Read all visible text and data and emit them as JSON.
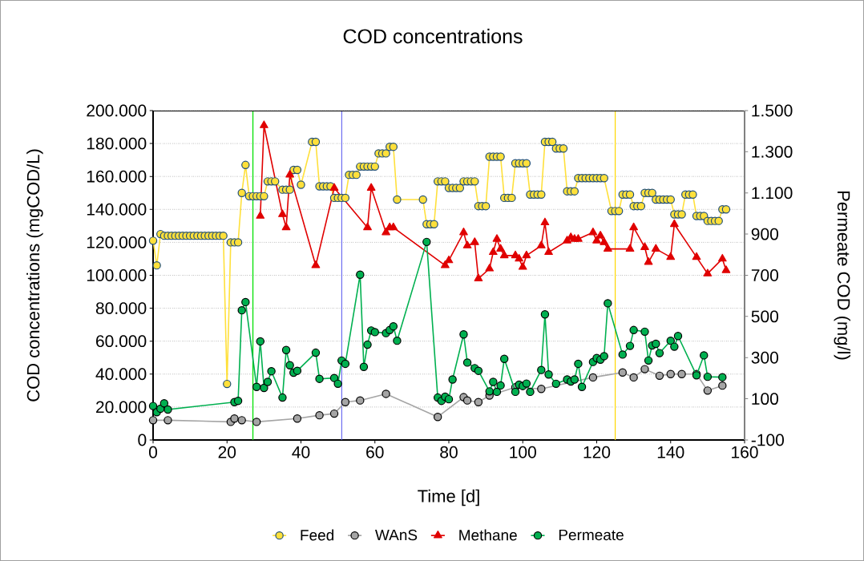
{
  "chart_data": {
    "type": "line",
    "title": "COD concentrations",
    "xlabel": "Time [d]",
    "ylabel": "COD concentrations (mgCOD/L)",
    "y2label": "Permeate COD (mg/l)",
    "xlim": [
      0,
      160
    ],
    "xticks": [
      0,
      20,
      40,
      60,
      80,
      100,
      120,
      140,
      160
    ],
    "ylim": [
      0,
      200000
    ],
    "yticks": [
      0,
      {
        "value": 20000,
        "label": "20.000"
      },
      {
        "value": 40000,
        "label": "40.000"
      },
      {
        "value": 60000,
        "label": "60.000"
      },
      {
        "value": 80000,
        "label": "80.000"
      },
      {
        "value": 100000,
        "label": "100.000"
      },
      {
        "value": 120000,
        "label": "120.000"
      },
      {
        "value": 140000,
        "label": "140.000"
      },
      {
        "value": 160000,
        "label": "160.000"
      },
      {
        "value": 180000,
        "label": "180.000"
      },
      {
        "value": 200000,
        "label": "200.000"
      }
    ],
    "y2lim": [
      -100,
      1500
    ],
    "y2ticks": [
      -100,
      100,
      300,
      500,
      700,
      900,
      {
        "value": 1100,
        "label": "1.100"
      },
      {
        "value": 1300,
        "label": "1.300"
      },
      {
        "value": 1500,
        "label": "1.500"
      }
    ],
    "grid": "y",
    "legend": "bottom",
    "line_style": "solid",
    "ref_lines": [
      {
        "axis": "x",
        "value": 27,
        "color": "#00e000"
      },
      {
        "axis": "x",
        "value": 51,
        "color": "#5a5af0"
      },
      {
        "axis": "x",
        "value": 125,
        "color": "#ffd700"
      }
    ],
    "series": [
      {
        "name": "Feed",
        "color": "#ffe03b",
        "marker": "circle",
        "x": [
          0,
          1,
          2,
          3,
          4,
          5,
          6,
          7,
          8,
          9,
          10,
          11,
          12,
          13,
          14,
          15,
          16,
          17,
          18,
          19,
          20,
          21,
          22,
          23,
          24,
          25,
          26,
          27,
          28,
          29,
          30,
          31,
          32,
          33,
          35,
          36,
          37,
          38,
          39,
          40,
          43,
          44,
          45,
          46,
          47,
          48,
          49,
          50,
          51,
          52,
          53,
          54,
          55,
          56,
          57,
          58,
          59,
          60,
          61,
          62,
          63,
          64,
          65,
          66,
          73,
          74,
          75,
          76,
          77,
          78,
          79,
          80,
          81,
          82,
          83,
          84,
          85,
          86,
          87,
          88,
          89,
          90,
          91,
          92,
          93,
          94,
          95,
          96,
          97,
          98,
          99,
          100,
          101,
          102,
          103,
          104,
          105,
          106,
          107,
          108,
          109,
          110,
          111,
          112,
          113,
          114,
          115,
          116,
          117,
          118,
          119,
          120,
          121,
          122,
          124,
          125,
          126,
          127,
          128,
          129,
          130,
          131,
          132,
          133,
          134,
          135,
          136,
          137,
          138,
          139,
          140,
          141,
          142,
          143,
          144,
          145,
          146,
          147,
          148,
          149,
          150,
          151,
          152,
          153,
          154,
          155
        ],
        "values": [
          121000,
          106000,
          125000,
          124000,
          124000,
          124000,
          124000,
          124000,
          124000,
          124000,
          124000,
          124000,
          124000,
          124000,
          124000,
          124000,
          124000,
          124000,
          124000,
          124000,
          34000,
          120000,
          120000,
          120000,
          150000,
          167000,
          148000,
          148000,
          148000,
          148000,
          148000,
          157000,
          157000,
          157000,
          152000,
          152000,
          152000,
          164000,
          164000,
          155000,
          181000,
          181000,
          154000,
          154000,
          154000,
          154000,
          147000,
          147000,
          147000,
          147000,
          161000,
          161000,
          161000,
          166000,
          166000,
          166000,
          166000,
          166000,
          174000,
          174000,
          174000,
          178000,
          178000,
          146000,
          146000,
          131000,
          131000,
          131000,
          157000,
          157000,
          157000,
          153000,
          153000,
          153000,
          153000,
          157000,
          157000,
          157000,
          157000,
          142000,
          142000,
          142000,
          172000,
          172000,
          172000,
          172000,
          147000,
          147000,
          147000,
          168000,
          168000,
          168000,
          168000,
          149000,
          149000,
          149000,
          149000,
          181000,
          181000,
          181000,
          177000,
          177000,
          177000,
          151000,
          151000,
          151000,
          159000,
          159000,
          159000,
          159000,
          159000,
          159000,
          159000,
          159000,
          139000,
          139000,
          139000,
          149000,
          149000,
          149000,
          142000,
          142000,
          142000,
          150000,
          150000,
          150000,
          146000,
          146000,
          146000,
          146000,
          146000,
          137000,
          137000,
          137000,
          149000,
          149000,
          149000,
          136000,
          136000,
          136000,
          133000,
          133000,
          133000,
          133000,
          140000,
          140000
        ]
      },
      {
        "name": "WAnS",
        "color": "#a5a5a5",
        "marker": "circle",
        "x": [
          0,
          4,
          21,
          22,
          24,
          28,
          39,
          45,
          49,
          52,
          56,
          63,
          77,
          84,
          85,
          88,
          91,
          98,
          105,
          119,
          127,
          130,
          133,
          137,
          140,
          143,
          147,
          150,
          154
        ],
        "values": [
          12000,
          12000,
          11000,
          13000,
          12000,
          11000,
          13000,
          15000,
          16000,
          23000,
          24000,
          28000,
          14000,
          26000,
          24000,
          23000,
          27000,
          32000,
          31000,
          38000,
          41000,
          38000,
          43000,
          39000,
          40000,
          40000,
          40000,
          30000,
          33000
        ]
      },
      {
        "name": "Methane",
        "color": "#e00000",
        "marker": "triangle",
        "x": [
          29,
          30,
          35,
          36,
          37,
          44,
          49,
          58,
          59,
          63,
          64,
          65,
          79,
          80,
          84,
          85,
          87,
          88,
          91,
          92,
          93,
          94,
          95,
          98,
          99,
          100,
          101,
          105,
          106,
          107,
          112,
          113,
          114,
          115,
          119,
          120,
          121,
          122,
          123,
          129,
          130,
          133,
          134,
          136,
          140,
          141,
          147,
          150,
          154,
          155
        ],
        "values": [
          136000,
          191000,
          137000,
          129000,
          161000,
          106000,
          153000,
          129000,
          153000,
          126000,
          129000,
          129000,
          106000,
          109000,
          126000,
          118000,
          120000,
          98000,
          104000,
          114000,
          122000,
          116000,
          112000,
          112000,
          110000,
          105000,
          112000,
          118000,
          132000,
          114000,
          121000,
          123000,
          122000,
          122000,
          126000,
          121000,
          124000,
          120000,
          116000,
          116000,
          129000,
          117000,
          108000,
          116000,
          111000,
          131000,
          111000,
          101000,
          110000,
          103000
        ]
      },
      {
        "name": "Permeate",
        "color": "#00b050",
        "marker": "circle",
        "axis": "y2",
        "x": [
          0,
          1,
          2,
          3,
          4,
          22,
          23,
          24,
          25,
          28,
          29,
          30,
          31,
          32,
          35,
          36,
          37,
          38,
          39,
          44,
          45,
          49,
          50,
          51,
          52,
          56,
          57,
          58,
          59,
          60,
          63,
          64,
          65,
          66,
          74,
          77,
          78,
          79,
          80,
          81,
          84,
          85,
          87,
          88,
          91,
          92,
          93,
          94,
          95,
          98,
          99,
          100,
          101,
          102,
          105,
          106,
          107,
          109,
          112,
          113,
          114,
          115,
          116,
          119,
          120,
          121,
          122,
          123,
          127,
          129,
          130,
          133,
          134,
          135,
          136,
          137,
          140,
          141,
          142,
          147,
          149,
          150,
          154
        ],
        "values": [
          65,
          35,
          52,
          78,
          48,
          84,
          90,
          530,
          570,
          158,
          379,
          153,
          182,
          234,
          106,
          337,
          263,
          227,
          236,
          324,
          197,
          201,
          173,
          286,
          270,
          703,
          255,
          363,
          432,
          424,
          419,
          434,
          452,
          382,
          862,
          106,
          90,
          110,
          98,
          194,
          413,
          276,
          249,
          236,
          136,
          182,
          134,
          165,
          294,
          134,
          169,
          162,
          174,
          134,
          240,
          510,
          218,
          173,
          194,
          184,
          194,
          270,
          158,
          279,
          298,
          290,
          307,
          564,
          315,
          357,
          434,
          426,
          286,
          359,
          367,
          322,
          382,
          353,
          405,
          214,
          311,
          207,
          205
        ]
      }
    ]
  }
}
